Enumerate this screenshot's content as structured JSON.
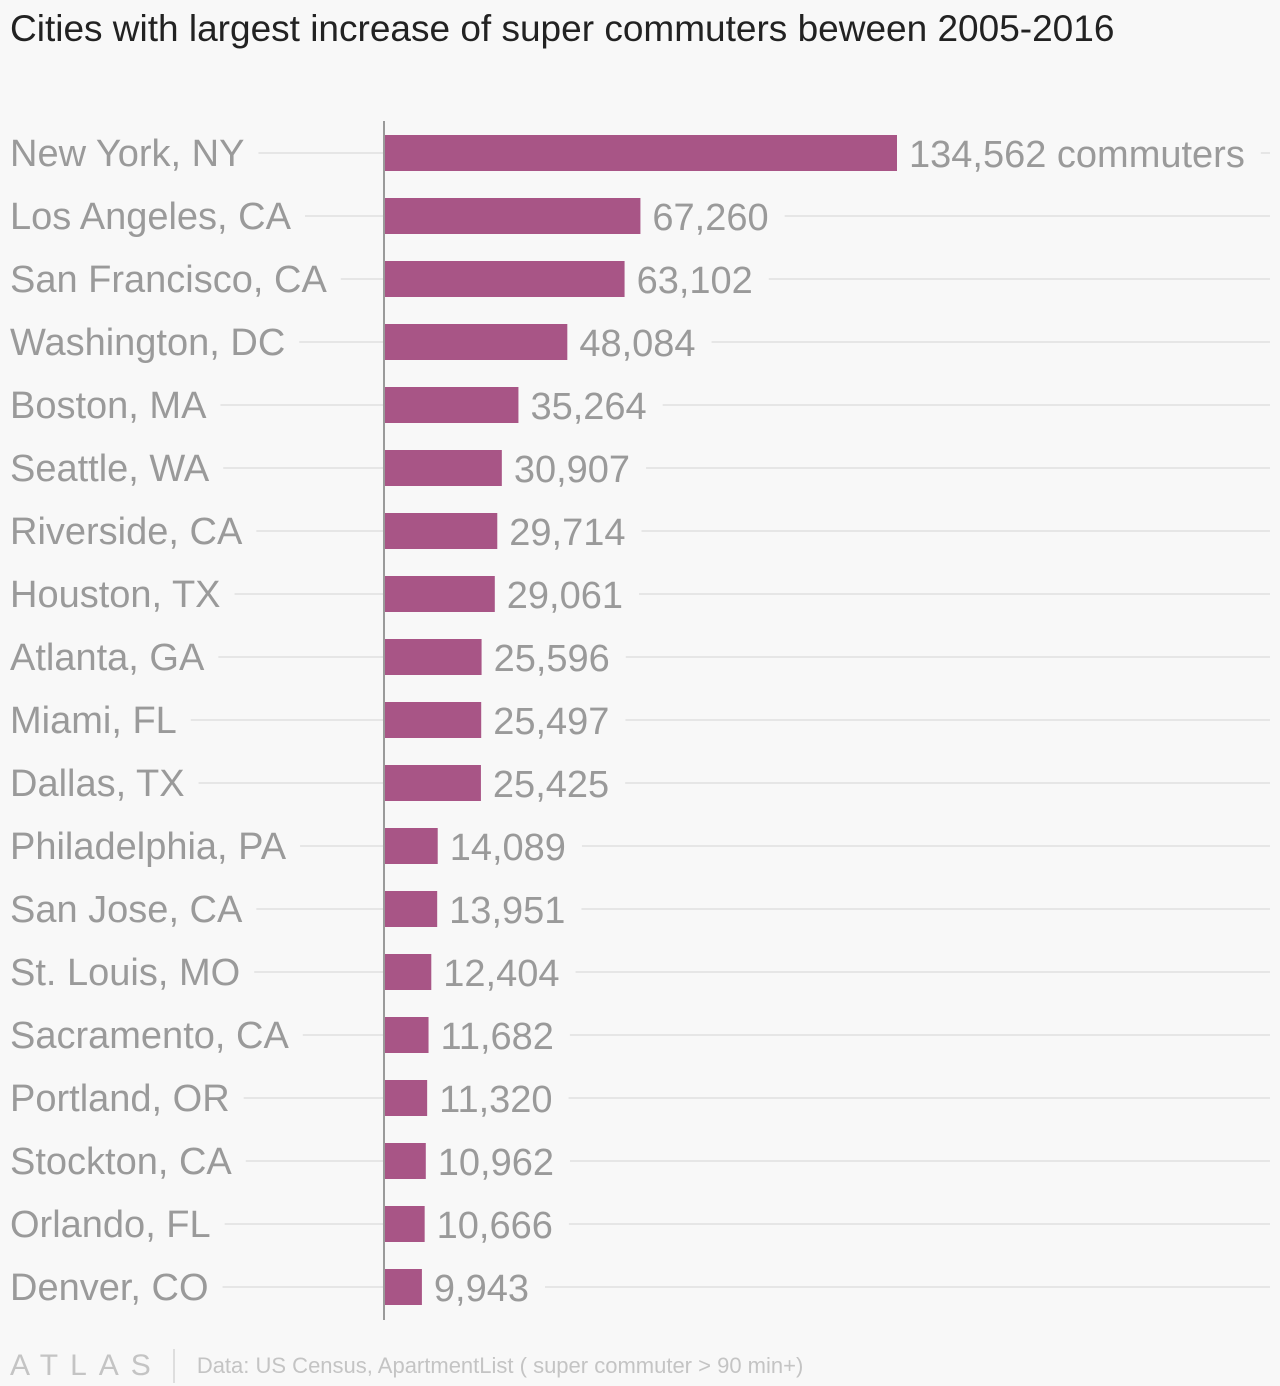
{
  "title": "Cities with largest increase of super commuters beween 2005-2016",
  "colors": {
    "bar": "#a85586",
    "label": "#9a9a9a",
    "axis": "#9a9a9a",
    "grid": "#e6e6e6",
    "title": "#222222",
    "footer": "#c4c4c4"
  },
  "chart_data": {
    "type": "bar",
    "orientation": "horizontal",
    "title": "Cities with largest increase of super commuters beween 2005-2016",
    "xlabel": "",
    "ylabel": "",
    "xlim": [
      0,
      134562
    ],
    "value_suffix_first": " commuters",
    "grid": true,
    "categories": [
      "New York, NY",
      "Los Angeles, CA",
      "San Francisco, CA",
      "Washington, DC",
      "Boston, MA",
      "Seattle, WA",
      "Riverside, CA",
      "Houston, TX",
      "Atlanta, GA",
      "Miami, FL",
      "Dallas, TX",
      "Philadelphia, PA",
      "San Jose, CA",
      "St. Louis, MO",
      "Sacramento, CA",
      "Portland, OR",
      "Stockton, CA",
      "Orlando, FL",
      "Denver, CO"
    ],
    "values": [
      134562,
      67260,
      63102,
      48084,
      35264,
      30907,
      29714,
      29061,
      25596,
      25497,
      25425,
      14089,
      13951,
      12404,
      11682,
      11320,
      10962,
      10666,
      9943
    ],
    "value_labels": [
      "134,562 commuters",
      "67,260",
      "63,102",
      "48,084",
      "35,264",
      "30,907",
      "29,714",
      "29,061",
      "25,596",
      "25,497",
      "25,425",
      "14,089",
      "13,951",
      "12,404",
      "11,682",
      "11,320",
      "10,962",
      "10,666",
      "9,943"
    ]
  },
  "footer": {
    "logo": "ATLAS",
    "source": "Data: US Census, ApartmentList ( super commuter > 90 min+)"
  }
}
